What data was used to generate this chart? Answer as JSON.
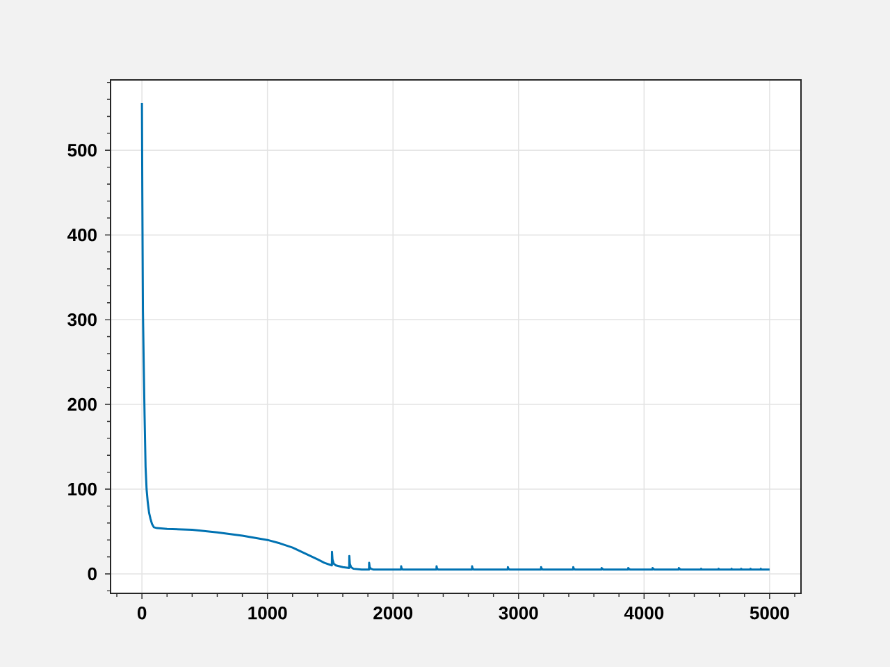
{
  "chart_data": {
    "type": "line",
    "color": "#0072b2",
    "grid": true,
    "xlim": [
      -250,
      5250
    ],
    "ylim": [
      -23,
      583
    ],
    "xticks": [
      {
        "value": -200,
        "label": null
      },
      0,
      {
        "value": 200,
        "label": null
      },
      {
        "value": 400,
        "label": null
      },
      {
        "value": 600,
        "label": null
      },
      {
        "value": 800,
        "label": null
      },
      1000,
      {
        "value": 1200,
        "label": null
      },
      {
        "value": 1400,
        "label": null
      },
      {
        "value": 1600,
        "label": null
      },
      {
        "value": 1800,
        "label": null
      },
      2000,
      {
        "value": 2200,
        "label": null
      },
      {
        "value": 2400,
        "label": null
      },
      {
        "value": 2600,
        "label": null
      },
      {
        "value": 2800,
        "label": null
      },
      3000,
      {
        "value": 3200,
        "label": null
      },
      {
        "value": 3400,
        "label": null
      },
      {
        "value": 3600,
        "label": null
      },
      {
        "value": 3800,
        "label": null
      },
      4000,
      {
        "value": 4200,
        "label": null
      },
      {
        "value": 4400,
        "label": null
      },
      {
        "value": 4600,
        "label": null
      },
      {
        "value": 4800,
        "label": null
      },
      5000,
      {
        "value": 5200,
        "label": null
      }
    ],
    "yticks": [
      {
        "value": -20,
        "label": null
      },
      0,
      {
        "value": 20,
        "label": null
      },
      {
        "value": 40,
        "label": null
      },
      {
        "value": 60,
        "label": null
      },
      {
        "value": 80,
        "label": null
      },
      100,
      {
        "value": 120,
        "label": null
      },
      {
        "value": 140,
        "label": null
      },
      {
        "value": 160,
        "label": null
      },
      {
        "value": 180,
        "label": null
      },
      200,
      {
        "value": 220,
        "label": null
      },
      {
        "value": 240,
        "label": null
      },
      {
        "value": 260,
        "label": null
      },
      {
        "value": 280,
        "label": null
      },
      300,
      {
        "value": 320,
        "label": null
      },
      {
        "value": 340,
        "label": null
      },
      {
        "value": 360,
        "label": null
      },
      {
        "value": 380,
        "label": null
      },
      400,
      {
        "value": 420,
        "label": null
      },
      {
        "value": 440,
        "label": null
      },
      {
        "value": 460,
        "label": null
      },
      {
        "value": 480,
        "label": null
      },
      500,
      {
        "value": 520,
        "label": null
      },
      {
        "value": 540,
        "label": null
      },
      {
        "value": 560,
        "label": null
      },
      {
        "value": 580,
        "label": null
      }
    ],
    "x": [
      0,
      3,
      8,
      14,
      21,
      29,
      37,
      46,
      57,
      68,
      80,
      95,
      120,
      200,
      400,
      600,
      800,
      1000,
      1100,
      1200,
      1300,
      1400,
      1454,
      1513,
      1514,
      1518,
      1528,
      1545,
      1600,
      1651,
      1652,
      1656,
      1666,
      1685,
      1750,
      1809,
      1810,
      1814,
      1824,
      1845,
      1900,
      2064,
      2065,
      2069,
      2080,
      2346,
      2347,
      2351,
      2362,
      2629,
      2630,
      2634,
      2645,
      2914,
      2915,
      2919,
      2930,
      3179,
      3180,
      3184,
      3195,
      3435,
      3436,
      3440,
      3451,
      3661,
      3662,
      3666,
      3677,
      3873,
      3874,
      3878,
      3889,
      4067,
      4068,
      4072,
      4083,
      4276,
      4277,
      4281,
      4292,
      4454,
      4455,
      4459,
      4470,
      4593,
      4594,
      4598,
      4609,
      4696,
      4697,
      4701,
      4712,
      4773,
      4774,
      4778,
      4789,
      4847,
      4848,
      4852,
      4863,
      4929,
      4930,
      4934,
      4945,
      5000
    ],
    "values": [
      556,
      450,
      310,
      250,
      187,
      126,
      100,
      85,
      72,
      65,
      59,
      55,
      54,
      53,
      52,
      49,
      45,
      40,
      36,
      31,
      24,
      17,
      13,
      10,
      26,
      17,
      12,
      10,
      8,
      7,
      21,
      12,
      8,
      6,
      5,
      5,
      13,
      8,
      6,
      5,
      5,
      5,
      9,
      6,
      5,
      5,
      9,
      6,
      5,
      5,
      9,
      6,
      5,
      5,
      8,
      6,
      5,
      5,
      8,
      6,
      5,
      5,
      8,
      6,
      5,
      5,
      7,
      6,
      5,
      5,
      7,
      6,
      5,
      5,
      7,
      6,
      5,
      5,
      7,
      6,
      5,
      5,
      6,
      5,
      5,
      5,
      6,
      5,
      5,
      5,
      6,
      5,
      5,
      5,
      6,
      5,
      5,
      5,
      6,
      5,
      5,
      5,
      6,
      5,
      5,
      5
    ]
  }
}
